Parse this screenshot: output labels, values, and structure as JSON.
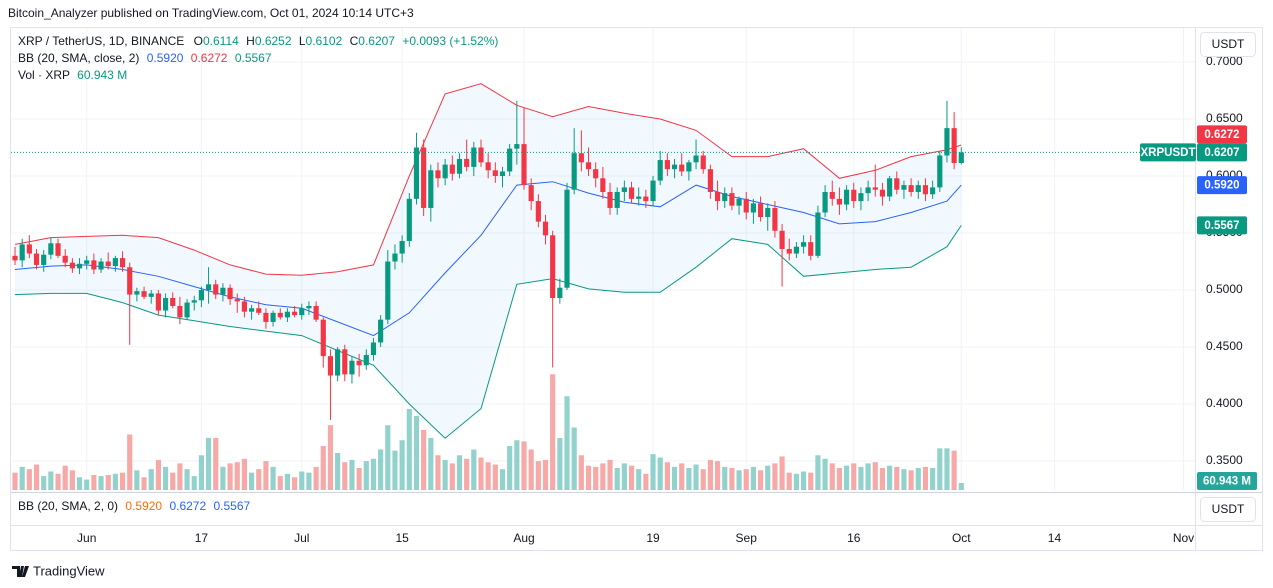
{
  "publisher": "Bitcoin_Analyzer published on TradingView.com, Oct 01, 2024 10:14 UTC+3",
  "legend": {
    "symbol": "XRP / TetherUS, 1D, BINANCE",
    "ohlc": [
      {
        "key": "O",
        "value": "0.6114"
      },
      {
        "key": "H",
        "value": "0.6252"
      },
      {
        "key": "L",
        "value": "0.6102"
      },
      {
        "key": "C",
        "value": "0.6207"
      }
    ],
    "change": "+0.0093 (+1.52%)",
    "bb": "BB (20, SMA, close, 2)",
    "bb_values": [
      "0.5920",
      "0.6272",
      "0.5567"
    ],
    "vol": "Vol · XRP",
    "vol_value": "60.943 M"
  },
  "price_tags": {
    "upper": "0.6272",
    "symbol": "XRPUSDT",
    "last": "0.6207",
    "middle": "0.5920",
    "lower": "0.5567",
    "volume": "60.943 M"
  },
  "currency_buttons": [
    "USDT",
    "USDT"
  ],
  "lower_pane": {
    "label": "BB (20, SMA, 2, 0)",
    "values": [
      "0.5920",
      "0.6272",
      "0.5567"
    ]
  },
  "footer": "TradingView",
  "chart_data": {
    "type": "candlestick",
    "up_color": "#089981",
    "down_color": "#f23645",
    "volume_up_color": "#92d2cc",
    "volume_down_color": "#f7a9a7",
    "grid": true,
    "xlim": [
      142.3,
      307.6
    ],
    "ylim": [
      0.3246,
      0.7307
    ],
    "vlim": [
      0,
      1080
    ],
    "yticks": [
      {
        "value": 0.35,
        "label": "0.3500"
      },
      {
        "value": 0.4,
        "label": "0.4000"
      },
      {
        "value": 0.45,
        "label": "0.4500"
      },
      {
        "value": 0.5,
        "label": "0.5000"
      },
      {
        "value": 0.55,
        "label": "0.5500"
      },
      {
        "value": 0.6,
        "label": "0.6000"
      },
      {
        "value": 0.65,
        "label": "0.6500"
      },
      {
        "value": 0.7,
        "label": "0.7000"
      }
    ],
    "xticks": [
      {
        "value": 153,
        "label": "Jun"
      },
      {
        "value": 169,
        "label": "17"
      },
      {
        "value": 183,
        "label": "Jul"
      },
      {
        "value": 197,
        "label": "15"
      },
      {
        "value": 214,
        "label": "Aug"
      },
      {
        "value": 232,
        "label": "19"
      },
      {
        "value": 245,
        "label": "Sep"
      },
      {
        "value": 260,
        "label": "16"
      },
      {
        "value": 275,
        "label": "Oct"
      },
      {
        "value": 288,
        "label": "14"
      },
      {
        "value": 306,
        "label": "Nov"
      }
    ],
    "x": [
      143,
      144,
      145,
      146,
      147,
      148,
      149,
      150,
      151,
      152,
      153,
      154,
      155,
      156,
      157,
      158,
      159,
      160,
      161,
      162,
      163,
      164,
      165,
      166,
      167,
      168,
      169,
      170,
      171,
      172,
      173,
      174,
      175,
      176,
      177,
      178,
      179,
      180,
      181,
      182,
      183,
      184,
      185,
      186,
      187,
      188,
      189,
      190,
      191,
      192,
      193,
      194,
      195,
      196,
      197,
      198,
      199,
      200,
      201,
      202,
      203,
      204,
      205,
      206,
      207,
      208,
      209,
      210,
      211,
      212,
      213,
      214,
      215,
      216,
      217,
      218,
      219,
      220,
      221,
      222,
      223,
      224,
      225,
      226,
      227,
      228,
      229,
      230,
      231,
      232,
      233,
      234,
      235,
      236,
      237,
      238,
      239,
      240,
      241,
      242,
      243,
      244,
      245,
      246,
      247,
      248,
      249,
      250,
      251,
      252,
      253,
      254,
      255,
      256,
      257,
      258,
      259,
      260,
      261,
      262,
      263,
      264,
      265,
      266,
      267,
      268,
      269,
      270,
      271,
      272,
      273,
      274,
      275
    ],
    "open": [
      0.53,
      0.526,
      0.54,
      0.532,
      0.522,
      0.531,
      0.541,
      0.53,
      0.524,
      0.519,
      0.523,
      0.526,
      0.518,
      0.525,
      0.521,
      0.528,
      0.52,
      0.496,
      0.499,
      0.494,
      0.497,
      0.482,
      0.493,
      0.486,
      0.476,
      0.489,
      0.491,
      0.5,
      0.505,
      0.496,
      0.502,
      0.492,
      0.49,
      0.481,
      0.484,
      0.48,
      0.472,
      0.48,
      0.476,
      0.481,
      0.478,
      0.484,
      0.486,
      0.474,
      0.442,
      0.425,
      0.448,
      0.426,
      0.438,
      0.434,
      0.443,
      0.454,
      0.474,
      0.525,
      0.532,
      0.543,
      0.58,
      0.625,
      0.572,
      0.605,
      0.598,
      0.61,
      0.602,
      0.615,
      0.608,
      0.625,
      0.612,
      0.605,
      0.6,
      0.604,
      0.624,
      0.628,
      0.592,
      0.578,
      0.56,
      0.548,
      0.493,
      0.502,
      0.588,
      0.62,
      0.612,
      0.606,
      0.598,
      0.586,
      0.572,
      0.586,
      0.59,
      0.58,
      0.582,
      0.578,
      0.596,
      0.614,
      0.606,
      0.61,
      0.604,
      0.612,
      0.618,
      0.606,
      0.586,
      0.578,
      0.585,
      0.574,
      0.58,
      0.568,
      0.576,
      0.564,
      0.572,
      0.552,
      0.536,
      0.532,
      0.538,
      0.542,
      0.53,
      0.568,
      0.586,
      0.58,
      0.575,
      0.588,
      0.578,
      0.585,
      0.59,
      0.588,
      0.582,
      0.598,
      0.588,
      0.592,
      0.586,
      0.592,
      0.584,
      0.59,
      0.618,
      0.642,
      0.6114
    ],
    "high": [
      0.538,
      0.545,
      0.548,
      0.536,
      0.535,
      0.546,
      0.545,
      0.536,
      0.528,
      0.528,
      0.53,
      0.532,
      0.528,
      0.533,
      0.53,
      0.534,
      0.524,
      0.502,
      0.503,
      0.5,
      0.5,
      0.497,
      0.498,
      0.494,
      0.492,
      0.495,
      0.503,
      0.52,
      0.509,
      0.506,
      0.505,
      0.497,
      0.494,
      0.487,
      0.49,
      0.484,
      0.482,
      0.484,
      0.484,
      0.486,
      0.488,
      0.49,
      0.49,
      0.476,
      0.448,
      0.45,
      0.452,
      0.442,
      0.444,
      0.448,
      0.458,
      0.478,
      0.535,
      0.54,
      0.548,
      0.585,
      0.638,
      0.632,
      0.61,
      0.612,
      0.615,
      0.618,
      0.62,
      0.632,
      0.63,
      0.632,
      0.62,
      0.612,
      0.608,
      0.628,
      0.666,
      0.66,
      0.598,
      0.584,
      0.566,
      0.552,
      0.51,
      0.594,
      0.642,
      0.64,
      0.625,
      0.612,
      0.608,
      0.594,
      0.59,
      0.596,
      0.595,
      0.59,
      0.588,
      0.6,
      0.622,
      0.62,
      0.615,
      0.62,
      0.614,
      0.632,
      0.622,
      0.61,
      0.596,
      0.59,
      0.59,
      0.582,
      0.586,
      0.58,
      0.582,
      0.576,
      0.578,
      0.558,
      0.545,
      0.542,
      0.548,
      0.548,
      0.574,
      0.592,
      0.596,
      0.59,
      0.592,
      0.594,
      0.59,
      0.596,
      0.61,
      0.594,
      0.6,
      0.604,
      0.596,
      0.598,
      0.596,
      0.598,
      0.596,
      0.622,
      0.666,
      0.656,
      0.6252
    ],
    "low": [
      0.522,
      0.52,
      0.528,
      0.518,
      0.516,
      0.527,
      0.528,
      0.52,
      0.515,
      0.514,
      0.518,
      0.514,
      0.515,
      0.518,
      0.516,
      0.516,
      0.452,
      0.49,
      0.492,
      0.488,
      0.478,
      0.476,
      0.484,
      0.47,
      0.474,
      0.482,
      0.485,
      0.488,
      0.492,
      0.49,
      0.487,
      0.48,
      0.476,
      0.474,
      0.478,
      0.466,
      0.468,
      0.474,
      0.472,
      0.476,
      0.474,
      0.478,
      0.472,
      0.432,
      0.386,
      0.42,
      0.42,
      0.418,
      0.424,
      0.43,
      0.438,
      0.45,
      0.47,
      0.518,
      0.524,
      0.538,
      0.575,
      0.565,
      0.56,
      0.59,
      0.592,
      0.596,
      0.598,
      0.604,
      0.6,
      0.608,
      0.598,
      0.594,
      0.59,
      0.6,
      0.61,
      0.588,
      0.57,
      0.555,
      0.54,
      0.432,
      0.488,
      0.5,
      0.584,
      0.604,
      0.6,
      0.59,
      0.58,
      0.566,
      0.566,
      0.578,
      0.576,
      0.574,
      0.572,
      0.574,
      0.592,
      0.6,
      0.598,
      0.6,
      0.596,
      0.606,
      0.602,
      0.58,
      0.57,
      0.572,
      0.57,
      0.566,
      0.562,
      0.558,
      0.56,
      0.552,
      0.546,
      0.503,
      0.526,
      0.528,
      0.532,
      0.526,
      0.528,
      0.564,
      0.574,
      0.566,
      0.57,
      0.572,
      0.57,
      0.578,
      0.582,
      0.574,
      0.578,
      0.584,
      0.58,
      0.582,
      0.58,
      0.578,
      0.58,
      0.586,
      0.612,
      0.606,
      0.6102
    ],
    "close": [
      0.526,
      0.54,
      0.532,
      0.522,
      0.531,
      0.541,
      0.53,
      0.524,
      0.519,
      0.523,
      0.526,
      0.518,
      0.525,
      0.521,
      0.528,
      0.52,
      0.496,
      0.499,
      0.494,
      0.497,
      0.482,
      0.493,
      0.486,
      0.476,
      0.489,
      0.491,
      0.5,
      0.505,
      0.496,
      0.502,
      0.492,
      0.49,
      0.481,
      0.484,
      0.48,
      0.472,
      0.48,
      0.476,
      0.481,
      0.478,
      0.484,
      0.486,
      0.474,
      0.442,
      0.425,
      0.448,
      0.426,
      0.438,
      0.434,
      0.443,
      0.454,
      0.474,
      0.525,
      0.532,
      0.543,
      0.58,
      0.625,
      0.572,
      0.605,
      0.598,
      0.61,
      0.602,
      0.615,
      0.608,
      0.625,
      0.612,
      0.605,
      0.6,
      0.604,
      0.624,
      0.628,
      0.592,
      0.578,
      0.56,
      0.548,
      0.493,
      0.502,
      0.588,
      0.62,
      0.612,
      0.606,
      0.598,
      0.586,
      0.572,
      0.586,
      0.59,
      0.58,
      0.582,
      0.578,
      0.596,
      0.614,
      0.606,
      0.61,
      0.604,
      0.612,
      0.618,
      0.606,
      0.586,
      0.578,
      0.585,
      0.574,
      0.58,
      0.568,
      0.576,
      0.564,
      0.572,
      0.552,
      0.536,
      0.532,
      0.538,
      0.542,
      0.53,
      0.568,
      0.586,
      0.58,
      0.575,
      0.588,
      0.578,
      0.585,
      0.59,
      0.588,
      0.582,
      0.598,
      0.588,
      0.592,
      0.586,
      0.592,
      0.584,
      0.59,
      0.618,
      0.642,
      0.6114,
      0.6207
    ],
    "volume": [
      150,
      200,
      180,
      220,
      120,
      160,
      140,
      210,
      170,
      110,
      90,
      130,
      120,
      130,
      140,
      150,
      480,
      170,
      110,
      180,
      260,
      200,
      150,
      230,
      180,
      120,
      300,
      450,
      450,
      200,
      230,
      240,
      270,
      150,
      180,
      250,
      200,
      120,
      140,
      110,
      160,
      150,
      200,
      380,
      560,
      320,
      240,
      260,
      190,
      250,
      270,
      350,
      560,
      340,
      430,
      700,
      640,
      520,
      450,
      300,
      260,
      230,
      300,
      270,
      350,
      280,
      240,
      220,
      180,
      380,
      430,
      420,
      350,
      250,
      260,
      1000,
      450,
      810,
      540,
      300,
      210,
      200,
      230,
      260,
      190,
      230,
      210,
      180,
      140,
      310,
      280,
      240,
      200,
      230,
      190,
      220,
      180,
      260,
      250,
      200,
      190,
      170,
      180,
      200,
      170,
      210,
      230,
      290,
      150,
      140,
      160,
      150,
      300,
      270,
      230,
      190,
      210,
      230,
      200,
      230,
      240,
      190,
      210,
      200,
      180,
      170,
      190,
      200,
      190,
      360,
      360,
      340,
      60.943
    ],
    "bands": {
      "fill": "#2196f3",
      "x": [
        143,
        148,
        153,
        158,
        163,
        168,
        173,
        178,
        183,
        188,
        193,
        198,
        203,
        208,
        213,
        218,
        223,
        228,
        233,
        238,
        243,
        248,
        253,
        258,
        263,
        268,
        273,
        275
      ],
      "lines": [
        {
          "color": "#f23645",
          "values": [
            0.54,
            0.546,
            0.547,
            0.548,
            0.546,
            0.535,
            0.522,
            0.514,
            0.513,
            0.516,
            0.522,
            0.6,
            0.672,
            0.681,
            0.662,
            0.652,
            0.661,
            0.655,
            0.65,
            0.64,
            0.617,
            0.617,
            0.624,
            0.598,
            0.605,
            0.617,
            0.623,
            0.6272
          ]
        },
        {
          "color": "#2962ff",
          "values": [
            0.518,
            0.521,
            0.522,
            0.518,
            0.512,
            0.503,
            0.494,
            0.487,
            0.484,
            0.472,
            0.46,
            0.48,
            0.515,
            0.548,
            0.592,
            0.595,
            0.585,
            0.577,
            0.573,
            0.592,
            0.582,
            0.575,
            0.568,
            0.558,
            0.56,
            0.568,
            0.578,
            0.592
          ]
        },
        {
          "color": "#089981",
          "values": [
            0.496,
            0.497,
            0.497,
            0.489,
            0.478,
            0.473,
            0.468,
            0.464,
            0.46,
            0.447,
            0.434,
            0.4,
            0.37,
            0.396,
            0.505,
            0.51,
            0.501,
            0.498,
            0.498,
            0.52,
            0.545,
            0.54,
            0.512,
            0.515,
            0.518,
            0.52,
            0.538,
            0.5567
          ]
        }
      ]
    }
  }
}
